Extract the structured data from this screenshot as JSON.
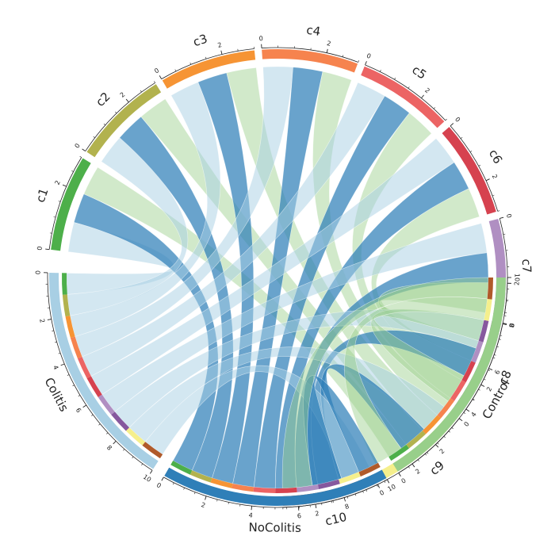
{
  "chart_data": {
    "type": "chord",
    "title": "",
    "top_sectors": [
      {
        "name": "c1",
        "color": "#4daf4a",
        "total": 3
      },
      {
        "name": "c2",
        "color": "#b2b24e",
        "total": 3
      },
      {
        "name": "c3",
        "color": "#f69434",
        "total": 3
      },
      {
        "name": "c4",
        "color": "#f6834e",
        "total": 3
      },
      {
        "name": "c5",
        "color": "#ec6464",
        "total": 3
      },
      {
        "name": "c6",
        "color": "#d6424f",
        "total": 3
      },
      {
        "name": "c7",
        "color": "#b08fc2",
        "total": 3
      },
      {
        "name": "c8",
        "color": "#86589e",
        "total": 3
      },
      {
        "name": "c9",
        "color": "#f5ef8c",
        "total": 3
      },
      {
        "name": "c10",
        "color": "#b05a2a",
        "total": 3
      }
    ],
    "bottom_sectors": [
      {
        "name": "Control",
        "color": "#98cf8a",
        "total": 10
      },
      {
        "name": "NoColitis",
        "color": "#2f7fb8",
        "total": 10
      },
      {
        "name": "Colitis",
        "color": "#a8cfe4",
        "total": 10
      }
    ],
    "links": [
      {
        "cluster": "c1",
        "Control": 1,
        "NoColitis": 1,
        "Colitis": 1
      },
      {
        "cluster": "c2",
        "Control": 1,
        "NoColitis": 1,
        "Colitis": 1
      },
      {
        "cluster": "c3",
        "Control": 1,
        "NoColitis": 1,
        "Colitis": 1
      },
      {
        "cluster": "c4",
        "Control": 1,
        "NoColitis": 1,
        "Colitis": 1
      },
      {
        "cluster": "c5",
        "Control": 1,
        "NoColitis": 1,
        "Colitis": 1
      },
      {
        "cluster": "c6",
        "Control": 1,
        "NoColitis": 1,
        "Colitis": 1
      },
      {
        "cluster": "c7",
        "Control": 1,
        "NoColitis": 1,
        "Colitis": 1
      },
      {
        "cluster": "c8",
        "Control": 1,
        "NoColitis": 1,
        "Colitis": 1
      },
      {
        "cluster": "c9",
        "Control": 1,
        "NoColitis": 1,
        "Colitis": 1
      },
      {
        "cluster": "c10",
        "Control": 1,
        "NoColitis": 1,
        "Colitis": 1
      }
    ],
    "top_tick_labels": [
      "0",
      "2"
    ],
    "bottom_tick_labels": [
      "0",
      "2",
      "4",
      "6",
      "8",
      "10"
    ]
  }
}
